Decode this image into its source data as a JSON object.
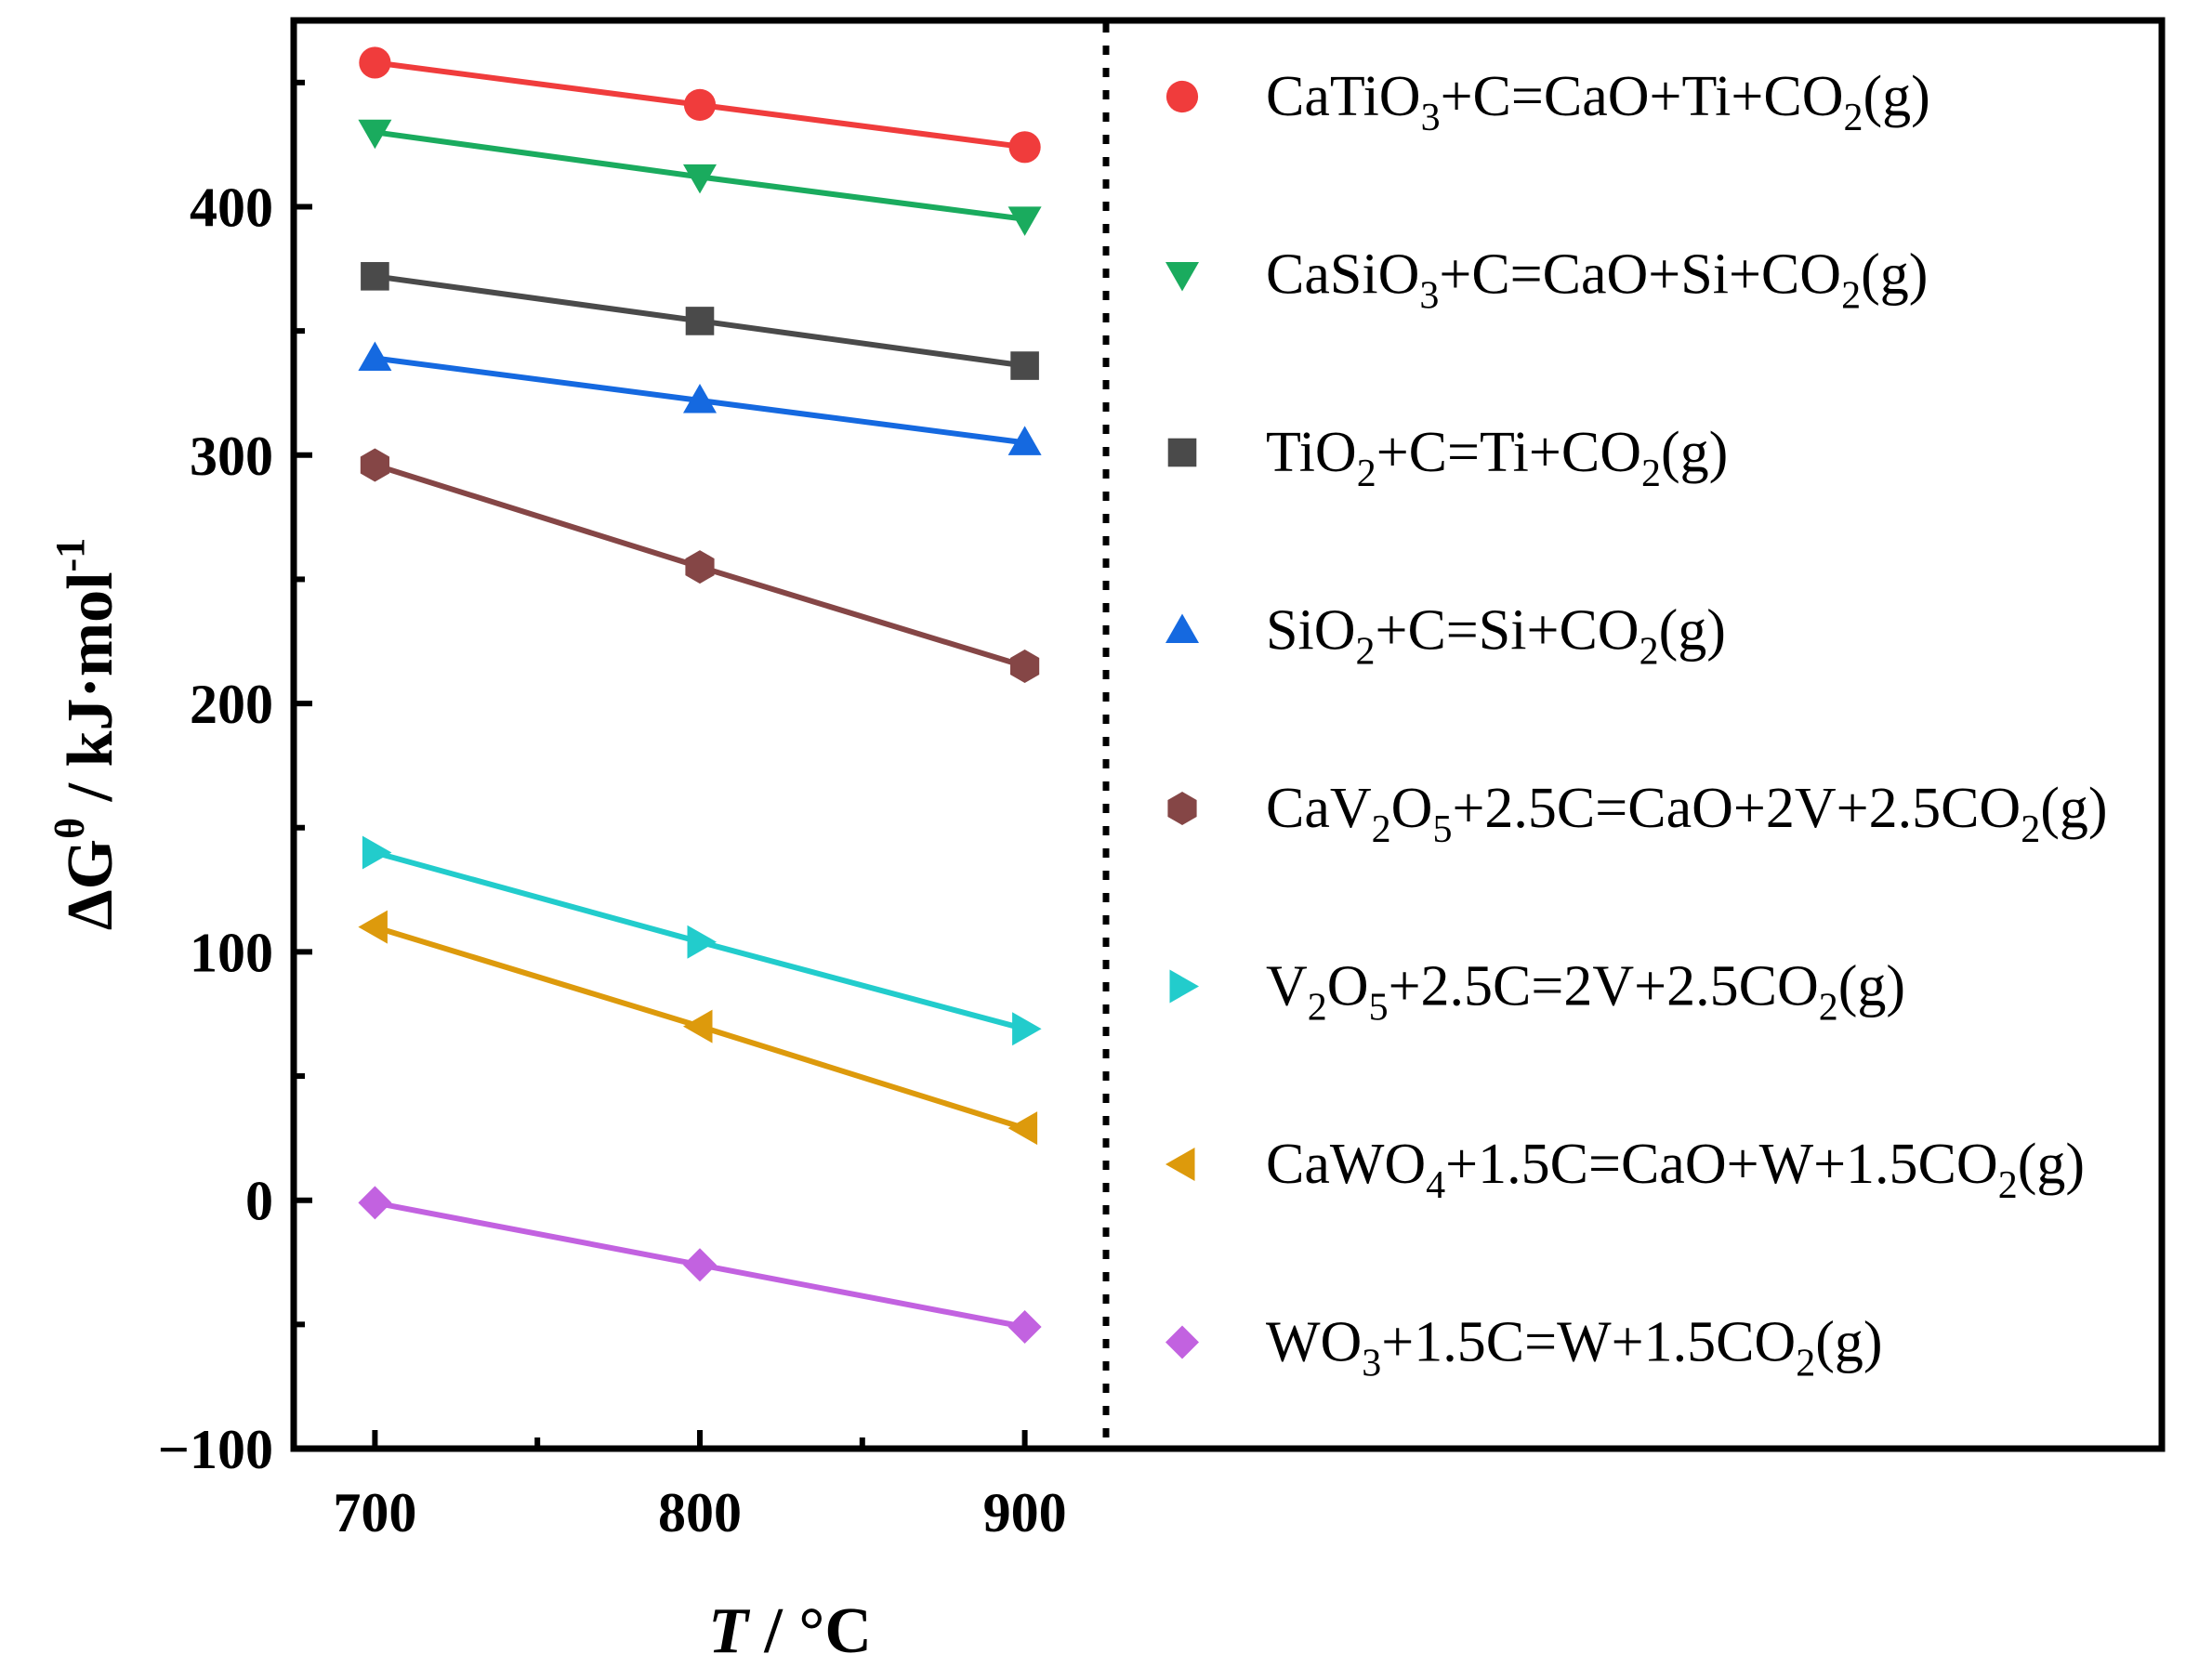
{
  "chart_data": {
    "type": "line",
    "title": "",
    "xlabel": "T / °C",
    "xlabel_var": "T",
    "xlabel_unit": " / °C",
    "ylabel": "ΔGθ / kJ·mol-1",
    "ylabel_var": "ΔG",
    "ylabel_sup": "θ",
    "ylabel_unit": " / kJ·mol",
    "ylabel_unit_sup": "-1",
    "xlim": [
      675,
      925
    ],
    "ylim": [
      -100,
      475
    ],
    "x_ticks": [
      700,
      800,
      900
    ],
    "x_tick_labels": [
      "700",
      "800",
      "900"
    ],
    "y_ticks": [
      -100,
      0,
      100,
      200,
      300,
      400
    ],
    "y_tick_labels": [
      "−100",
      "0",
      "100",
      "200",
      "300",
      "400"
    ],
    "x": [
      700,
      800,
      900
    ],
    "legend_position": "right",
    "series": [
      {
        "name": "CaTiO3+C=CaO+Ti+CO2(g)",
        "color": "#f03c3c",
        "marker": "circle",
        "legend": [
          {
            "t": "CaTiO"
          },
          {
            "t": "3",
            "sub": true
          },
          {
            "t": "+C=CaO+Ti+CO"
          },
          {
            "t": "2",
            "sub": true
          },
          {
            "t": "(g)"
          }
        ],
        "values": [
          458,
          441,
          424
        ]
      },
      {
        "name": "CaSiO3+C=CaO+Si+CO2(g)",
        "color": "#1aab5e",
        "marker": "triangle-down",
        "legend": [
          {
            "t": "CaSiO"
          },
          {
            "t": "3",
            "sub": true
          },
          {
            "t": "+C=CaO+Si+CO"
          },
          {
            "t": "2",
            "sub": true
          },
          {
            "t": "(g)"
          }
        ],
        "values": [
          430,
          412,
          395
        ]
      },
      {
        "name": "TiO2+C=Ti+CO2(g)",
        "color": "#4a4a4a",
        "marker": "square",
        "legend": [
          {
            "t": "TiO"
          },
          {
            "t": "2",
            "sub": true
          },
          {
            "t": "+C=Ti+CO"
          },
          {
            "t": "2",
            "sub": true
          },
          {
            "t": "(g)"
          }
        ],
        "values": [
          372,
          354,
          336
        ]
      },
      {
        "name": "SiO2+C=Si+CO2(g)",
        "color": "#1569e0",
        "marker": "triangle-up",
        "legend": [
          {
            "t": "SiO"
          },
          {
            "t": "2",
            "sub": true
          },
          {
            "t": "+C=Si+CO"
          },
          {
            "t": "2",
            "sub": true
          },
          {
            "t": "(g)"
          }
        ],
        "values": [
          339,
          322,
          305
        ]
      },
      {
        "name": "CaV2O5+2.5C=CaO+2V+2.5CO2(g)",
        "color": "#854646",
        "marker": "hexagon",
        "legend": [
          {
            "t": "CaV"
          },
          {
            "t": "2",
            "sub": true
          },
          {
            "t": "O"
          },
          {
            "t": "5",
            "sub": true
          },
          {
            "t": "+2.5C=CaO+2V+2.5CO"
          },
          {
            "t": "2",
            "sub": true
          },
          {
            "t": "(g)"
          }
        ],
        "values": [
          296,
          255,
          215
        ]
      },
      {
        "name": "V2O5+2.5C=2V+2.5CO2(g)",
        "color": "#22cccc",
        "marker": "triangle-right",
        "legend": [
          {
            "t": "V"
          },
          {
            "t": "2",
            "sub": true
          },
          {
            "t": "O"
          },
          {
            "t": "5",
            "sub": true
          },
          {
            "t": "+2.5C=2V+2.5CO"
          },
          {
            "t": "2",
            "sub": true
          },
          {
            "t": "(g)"
          }
        ],
        "values": [
          140,
          104,
          69
        ]
      },
      {
        "name": "CaWO4+1.5C=CaO+W+1.5CO2(g)",
        "color": "#dd9a0c",
        "marker": "triangle-left",
        "legend": [
          {
            "t": "CaWO"
          },
          {
            "t": "4",
            "sub": true
          },
          {
            "t": "+1.5C=CaO+W+1.5CO"
          },
          {
            "t": "2",
            "sub": true
          },
          {
            "t": "(g)"
          }
        ],
        "values": [
          110,
          70,
          29
        ]
      },
      {
        "name": "WO3+1.5C=W+1.5CO2(g)",
        "color": "#c262e0",
        "marker": "diamond",
        "legend": [
          {
            "t": "WO"
          },
          {
            "t": "3",
            "sub": true
          },
          {
            "t": "+1.5C=W+1.5CO"
          },
          {
            "t": "2",
            "sub": true
          },
          {
            "t": "(g)"
          }
        ],
        "values": [
          -1,
          -26,
          -51
        ]
      }
    ]
  }
}
